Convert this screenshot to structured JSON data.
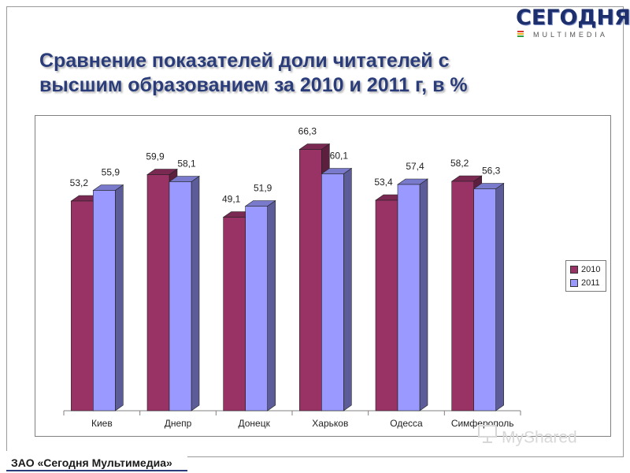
{
  "logo": {
    "main": "СЕГОДНЯ",
    "sub": "MULTIMEDIA",
    "stripe_colors": [
      "#e03030",
      "#f0b020",
      "#30a040",
      "#3070d0"
    ]
  },
  "title": "Сравнение показателей доли читателей с высшим образованием за 2010 и  2011 г, в %",
  "footer": {
    "text": "ЗАО «Сегодня Мультимедиа»"
  },
  "watermark": {
    "text": "MyShared"
  },
  "colors": {
    "series_2010": "#993366",
    "series_2011": "#9999ff",
    "title": "#2a3d7a"
  },
  "chart_data": {
    "type": "bar",
    "categories": [
      "Киев",
      "Днепр",
      "Донецк",
      "Харьков",
      "Одесса",
      "Симферополь"
    ],
    "series": [
      {
        "name": "2010",
        "values": [
          53.2,
          59.9,
          49.1,
          66.3,
          53.4,
          58.2
        ],
        "labels": [
          "53,2",
          "59,9",
          "49,1",
          "66,3",
          "53,4",
          "58,2"
        ]
      },
      {
        "name": "2011",
        "values": [
          55.9,
          58.1,
          51.9,
          60.1,
          57.4,
          56.3
        ],
        "labels": [
          "55,9",
          "58,1",
          "51,9",
          "60,1",
          "57,4",
          "56,3"
        ]
      }
    ],
    "ylim": [
      0,
      70
    ],
    "three_d": true,
    "grid": false,
    "legend": "right"
  }
}
